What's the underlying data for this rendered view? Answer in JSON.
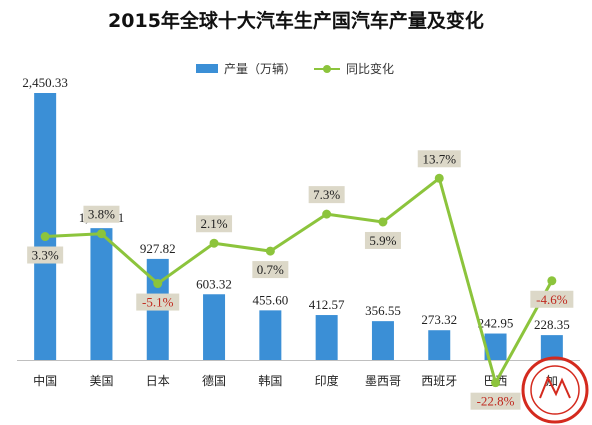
{
  "title": "2015年全球十大汽车生产国汽车产量及变化",
  "legend": {
    "bar": "产量（万辆）",
    "line": "同比变化"
  },
  "colors": {
    "bar": "#3b8fd6",
    "line": "#8cc43c",
    "negative": "#c0281e",
    "label_bg": "#dcd8c8"
  },
  "chart_data": {
    "type": "bar",
    "categories": [
      "中国",
      "美国",
      "日本",
      "德国",
      "韩国",
      "印度",
      "墨西哥",
      "西班牙",
      "巴西",
      "加"
    ],
    "series": [
      {
        "name": "产量（万辆）",
        "type": "bar",
        "values": [
          2450.33,
          1210.01,
          927.82,
          603.32,
          455.6,
          412.57,
          356.55,
          273.32,
          242.95,
          228.35
        ],
        "labels": [
          "2,450.33",
          "1,210.01",
          "927.82",
          "603.32",
          "455.60",
          "412.57",
          "356.55",
          "273.32",
          "242.95",
          "228.35"
        ]
      },
      {
        "name": "同比变化",
        "type": "line",
        "values": [
          3.3,
          3.8,
          -5.1,
          2.1,
          0.7,
          7.3,
          5.9,
          13.7,
          -22.8,
          -4.6
        ],
        "labels": [
          "3.3%",
          "3.8%",
          "-5.1%",
          "2.1%",
          "0.7%",
          "7.3%",
          "5.9%",
          "13.7%",
          "-22.8%",
          "-4.6%"
        ]
      }
    ],
    "ylim_bar": [
      0,
      2450.33
    ],
    "ylim_line": [
      -25,
      25
    ],
    "legend_position": "top",
    "grid": false
  }
}
